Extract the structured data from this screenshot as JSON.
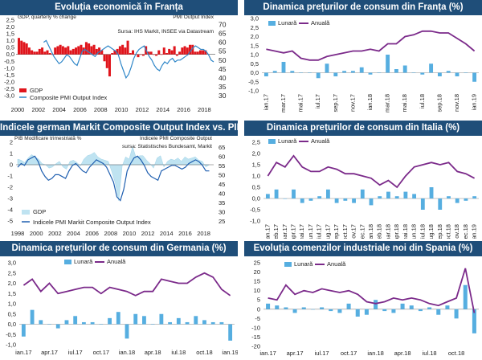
{
  "colors": {
    "header": "#1f4e79",
    "purple": "#7b2a8a",
    "lightblue": "#56aee0",
    "red": "#e0151c",
    "pmiblue": "#2e86c8",
    "divider": "#9dc3e6"
  },
  "panels": [
    {
      "title": "Evoluția economică în Franța"
    },
    {
      "title": "Dinamica prețurilor de consum din Franța (%)"
    },
    {
      "title": "Indicele german Markit Composite Output Index vs. PIB"
    },
    {
      "title": "Dinamica prețurilor de consum din Italia (%)"
    },
    {
      "title": "Dinamica prețurilor de consum din Germania (%)"
    },
    {
      "title": "Evoluția comenzilor industriale noi din Spania (%)"
    }
  ],
  "chart_data": [
    {
      "id": "fr_econ",
      "type": "bar",
      "title": "Evoluția economică în Franța",
      "left_label": "GDP, quarterly % change",
      "right_label": "PMI Output Index",
      "source": "Sursa: IHS Markit, INSEE via Datastream",
      "ylim": [
        -3,
        2.5
      ],
      "y2lim": [
        30,
        72.5
      ],
      "yticks": [
        "2,5",
        "2,0",
        "1,5",
        "1,0",
        "0,5",
        "0,0",
        "-0,5",
        "-1,0",
        "-1,5",
        "-2,0",
        "-2,5",
        "-3,0"
      ],
      "y2ticks": [
        "70",
        "65",
        "60",
        "55",
        "50",
        "45",
        "40",
        "35",
        "30"
      ],
      "xticks": [
        "2000",
        "2002",
        "2004",
        "2006",
        "2008",
        "2010",
        "2012",
        "2014",
        "2016",
        "2018"
      ],
      "series": [
        {
          "name": "GDP",
          "values": [
            1.2,
            1.0,
            0.9,
            0.8,
            0.5,
            0.3,
            0.2,
            0.2,
            0.4,
            0.5,
            0.2,
            0.3,
            0.1,
            0.0,
            0.5,
            0.6,
            0.7,
            0.6,
            0.5,
            0.6,
            0.3,
            0.4,
            0.5,
            0.6,
            0.7,
            0.5,
            0.9,
            0.8,
            0.6,
            0.7,
            0.4,
            0.5,
            0.3,
            -0.5,
            -1.0,
            -1.6,
            0.1,
            0.3,
            0.4,
            0.6,
            0.7,
            0.5,
            1.0,
            0.1,
            0.3,
            0.0,
            -0.2,
            0.0,
            -0.1,
            0.6,
            0.2,
            0.2,
            0.0,
            -0.1,
            0.3,
            0.0,
            0.5,
            0.1,
            0.4,
            0.3,
            0.6,
            -0.1,
            0.2,
            0.5,
            0.6,
            0.5,
            0.7,
            0.7,
            0.2,
            0.2,
            0.3,
            0.3,
            0.3
          ]
        },
        {
          "name": "Composite PMI Output Index",
          "values": [
            60,
            61,
            58,
            55,
            52,
            50,
            48,
            49,
            51,
            53,
            52,
            50,
            48,
            47,
            51,
            55,
            56,
            55,
            54,
            53,
            52,
            54,
            55,
            56,
            57,
            58,
            57,
            56,
            55,
            53,
            48,
            44,
            40,
            42,
            46,
            51,
            54,
            56,
            57,
            58,
            55,
            52,
            50,
            47,
            45,
            44,
            47,
            49,
            48,
            50,
            51,
            49,
            50,
            50,
            51,
            52,
            53,
            55,
            57,
            58,
            57,
            56,
            56,
            55,
            53,
            50,
            49
          ]
        }
      ]
    },
    {
      "id": "fr_cpi",
      "type": "bar+line",
      "title": "Dinamica prețurilor de consum din Franța (%)",
      "ylim": [
        -1,
        3
      ],
      "yticks": [
        "3,0",
        "2,5",
        "2,0",
        "1,5",
        "1,0",
        "0,5",
        "0,0",
        "-0,5",
        "-1,0"
      ],
      "categories": [
        "ian.17",
        "feb.17",
        "mar.17",
        "apr.17",
        "mai.17",
        "iun.17",
        "iul.17",
        "aug.17",
        "sep.17",
        "oct.17",
        "nov.17",
        "dec.17",
        "ian.18",
        "feb.18",
        "mar.18",
        "apr.18",
        "mai.18",
        "iun.18",
        "iul.18",
        "aug.18",
        "sep.18",
        "oct.18",
        "nov.18",
        "dec.18",
        "ian.19"
      ],
      "xticks": [
        "ian.17",
        "mar.17",
        "mai.17",
        "iul.17",
        "sep.17",
        "nov.17",
        "ian.18",
        "mar.18",
        "mai.18",
        "iul.18",
        "sep.18",
        "nov.18",
        "ian.19"
      ],
      "series": [
        {
          "name": "Lunară",
          "values": [
            -0.2,
            0.1,
            0.6,
            0.1,
            0.0,
            0.0,
            -0.3,
            0.5,
            -0.2,
            0.1,
            0.1,
            0.3,
            -0.1,
            0.0,
            1.0,
            0.2,
            0.4,
            0.0,
            -0.1,
            0.5,
            -0.2,
            0.1,
            -0.2,
            0.0,
            -0.5
          ]
        },
        {
          "name": "Anuală",
          "values": [
            1.3,
            1.2,
            1.1,
            1.2,
            0.8,
            0.7,
            0.7,
            0.9,
            1.0,
            1.1,
            1.2,
            1.2,
            1.3,
            1.2,
            1.6,
            1.6,
            2.0,
            2.1,
            2.3,
            2.3,
            2.2,
            2.2,
            1.9,
            1.6,
            1.2
          ]
        }
      ]
    },
    {
      "id": "de_pmi",
      "type": "area+line",
      "title": "Indicele german Markit Composite Output Index vs. PIB",
      "left_label": "PIB Modificare trimestrială %",
      "right_label": "Indicele PMI Composite Output",
      "source": "sursa: Statistisches Bundesamt, Markit",
      "ylim": [
        -5,
        2
      ],
      "y2lim": [
        25,
        67.5
      ],
      "yticks": [
        "2",
        "1",
        "0",
        "-1",
        "-2",
        "-3",
        "-4",
        "-5"
      ],
      "y2ticks": [
        "65",
        "60",
        "55",
        "50",
        "45",
        "40",
        "35",
        "30",
        "25"
      ],
      "xticks": [
        "1998",
        "2000",
        "2002",
        "2004",
        "2006",
        "2008",
        "2010",
        "2012",
        "2014",
        "2016",
        "2018"
      ],
      "series": [
        {
          "name": "GDP",
          "values": [
            0.5,
            0.4,
            0.2,
            0.6,
            0.9,
            0.7,
            0.5,
            0.1,
            0.0,
            -0.3,
            -0.2,
            0.1,
            0.3,
            -0.2,
            -0.4,
            0.3,
            0.4,
            0.2,
            -0.1,
            0.5,
            0.8,
            0.9,
            1.1,
            0.7,
            0.5,
            0.4,
            0.3,
            -0.6,
            -1.6,
            -3.2,
            -0.1,
            0.7,
            0.5,
            1.6,
            0.6,
            0.8,
            0.8,
            0.4,
            0.1,
            -0.3,
            0.6,
            0.8,
            -0.2,
            0.3,
            0.5,
            0.4,
            0.6,
            0.3,
            0.7,
            0.5,
            0.6,
            0.7,
            0.4,
            0.3,
            -0.2,
            0.0
          ]
        },
        {
          "name": "Indicele PMI Markit Composite Output Index",
          "values": [
            54,
            56,
            55,
            58,
            59,
            60,
            57,
            52,
            49,
            47,
            48,
            50,
            50,
            49,
            48,
            52,
            55,
            56,
            54,
            52,
            51,
            54,
            56,
            58,
            57,
            56,
            54,
            50,
            46,
            38,
            36,
            42,
            52,
            56,
            59,
            60,
            58,
            55,
            51,
            49,
            48,
            47,
            52,
            53,
            54,
            55,
            55,
            54,
            53,
            54,
            56,
            57,
            58,
            57,
            55,
            52,
            52
          ]
        }
      ]
    },
    {
      "id": "it_cpi",
      "type": "bar+line",
      "title": "Dinamica prețurilor de consum din Italia (%)",
      "ylim": [
        -1,
        2.5
      ],
      "yticks": [
        "2,5",
        "2,0",
        "1,5",
        "1,0",
        "0,5",
        "0,0",
        "-0,5",
        "-1,0"
      ],
      "categories": [
        "ian.17",
        "feb.17",
        "mar.17",
        "apr.17",
        "mai.17",
        "iun.17",
        "iul.17",
        "aug.17",
        "sep.17",
        "oct.17",
        "nov.17",
        "dec.17",
        "ian.18",
        "feb.18",
        "mar.18",
        "apr.18",
        "mai.18",
        "iun.18",
        "iul.18",
        "aug.18",
        "sep.18",
        "oct.18",
        "nov.18",
        "dec.18",
        "ian.19"
      ],
      "xticks": [
        "ian.17",
        "feb.17",
        "mar.17",
        "apr.17",
        "mai.17",
        "iun.17",
        "iul.17",
        "aug.17",
        "sep.17",
        "oct.17",
        "nov.17",
        "dec.17",
        "ian.18",
        "feb.18",
        "mar.18",
        "apr.18",
        "mai.18",
        "iun.18",
        "iul.18",
        "aug.18",
        "sep.18",
        "oct.18",
        "nov.18",
        "dec.18",
        "ian.19"
      ],
      "series": [
        {
          "name": "Lunară",
          "values": [
            0.2,
            0.4,
            0.0,
            0.4,
            -0.2,
            -0.1,
            0.1,
            0.4,
            -0.2,
            -0.1,
            -0.2,
            0.4,
            -0.3,
            0.1,
            0.3,
            0.1,
            0.3,
            0.2,
            -0.5,
            0.5,
            -0.5,
            0.1,
            -0.2,
            -0.1,
            0.1
          ]
        },
        {
          "name": "Anuală",
          "values": [
            1.0,
            1.6,
            1.4,
            1.9,
            1.4,
            1.2,
            1.2,
            1.4,
            1.3,
            1.1,
            1.1,
            1.0,
            0.9,
            0.6,
            0.8,
            0.5,
            1.0,
            1.4,
            1.5,
            1.6,
            1.5,
            1.6,
            1.2,
            1.1,
            0.9
          ]
        }
      ]
    },
    {
      "id": "de_cpi",
      "type": "bar+line",
      "title": "Dinamica prețurilor de consum din Germania (%)",
      "ylim": [
        -1,
        3
      ],
      "yticks": [
        "3,0",
        "2,5",
        "2,0",
        "1,5",
        "1,0",
        "0,5",
        "0,0",
        "-0,5",
        "-1,0"
      ],
      "categories": [
        "ian.17",
        "feb.17",
        "mar.17",
        "apr.17",
        "mai.17",
        "iun.17",
        "iul.17",
        "aug.17",
        "sep.17",
        "oct.17",
        "nov.17",
        "dec.17",
        "ian.18",
        "feb.18",
        "mar.18",
        "apr.18",
        "mai.18",
        "iun.18",
        "iul.18",
        "aug.18",
        "sep.18",
        "oct.18",
        "nov.18",
        "dec.18",
        "ian.19"
      ],
      "xticks": [
        "ian.17",
        "apr.17",
        "iul.17",
        "oct.17",
        "ian.18",
        "apr.18",
        "iul.18",
        "oct.18",
        "ian.19"
      ],
      "series": [
        {
          "name": "Lunară",
          "values": [
            -0.6,
            0.7,
            0.2,
            0.0,
            -0.2,
            0.2,
            0.4,
            0.1,
            0.1,
            0.0,
            0.3,
            0.6,
            -0.7,
            0.5,
            0.4,
            0.0,
            0.5,
            0.1,
            0.3,
            0.1,
            0.4,
            0.2,
            0.1,
            0.1,
            -0.8
          ]
        },
        {
          "name": "Anuală",
          "values": [
            1.9,
            2.2,
            1.6,
            2.0,
            1.5,
            1.6,
            1.7,
            1.8,
            1.8,
            1.5,
            1.8,
            1.7,
            1.6,
            1.4,
            1.6,
            1.6,
            2.2,
            2.1,
            2.0,
            2.0,
            2.3,
            2.5,
            2.3,
            1.7,
            1.4
          ]
        }
      ]
    },
    {
      "id": "es_orders",
      "type": "bar+line",
      "title": "Evoluția comenzilor industriale noi din Spania (%)",
      "ylim": [
        -20,
        25
      ],
      "yticks": [
        "25",
        "20",
        "15",
        "10",
        "5",
        "0",
        "-5",
        "-10",
        "-15",
        "-20"
      ],
      "categories": [
        "ian.17",
        "feb.17",
        "mar.17",
        "apr.17",
        "mai.17",
        "iun.17",
        "iul.17",
        "aug.17",
        "sep.17",
        "oct.17",
        "nov.17",
        "dec.17",
        "ian.18",
        "feb.18",
        "mar.18",
        "apr.18",
        "mai.18",
        "iun.18",
        "iul.18",
        "aug.18",
        "sep.18",
        "oct.18",
        "nov.18",
        "dec.18"
      ],
      "xticks": [
        "ian.17",
        "apr.17",
        "iul.17",
        "oct.17",
        "ian.18",
        "apr.18",
        "iul.18",
        "oct.18"
      ],
      "series": [
        {
          "name": "Lunară",
          "values": [
            3,
            2,
            1,
            -2,
            1,
            0,
            1,
            -1,
            -2,
            3,
            -4,
            -3,
            5,
            -1,
            -2,
            3,
            2,
            -1,
            1,
            -3,
            2,
            -5,
            13,
            -13
          ]
        },
        {
          "name": "Anuală",
          "values": [
            6,
            5,
            13,
            8,
            10,
            9,
            11,
            10,
            9,
            10,
            8,
            4,
            3,
            4,
            6,
            5,
            6,
            5,
            3,
            2,
            4,
            6,
            22,
            -2
          ]
        }
      ]
    }
  ],
  "legends": {
    "lunara": "Lunară",
    "anuala": "Anuală",
    "gdp": "GDP",
    "composite": "Composite PMI Output Index",
    "gdp2": "GDP",
    "pmi_de": "Indicele PMI Markit Composite Output Index"
  }
}
